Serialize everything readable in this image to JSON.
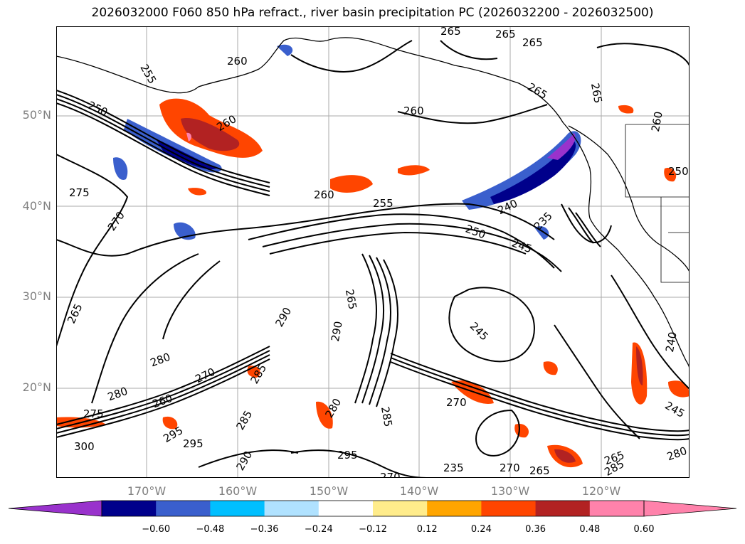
{
  "title": "2026032000 F060 850 hPa refract., river basin precipitation PC (2026032200 - 2026032500)",
  "lat_labels": [
    "50°N",
    "40°N",
    "30°N",
    "20°N"
  ],
  "lon_labels": [
    "170°W",
    "160°W",
    "150°W",
    "140°W",
    "130°W",
    "120°W"
  ],
  "contour_labels": [
    "265",
    "265",
    "265",
    "260",
    "255",
    "250",
    "260",
    "260",
    "265",
    "265",
    "260",
    "275",
    "270",
    "260",
    "255",
    "240",
    "235",
    "250",
    "245",
    "265",
    "290",
    "290",
    "265",
    "245",
    "280",
    "270",
    "280",
    "275",
    "260",
    "285",
    "285",
    "295",
    "295",
    "300",
    "290",
    "280",
    "295",
    "270",
    "285",
    "270",
    "265",
    "285",
    "280",
    "245",
    "240",
    "265",
    "235",
    "270",
    "250"
  ],
  "colorbar": {
    "ticks": [
      "−0.60",
      "−0.48",
      "−0.36",
      "−0.24",
      "−0.12",
      "0.12",
      "0.24",
      "0.36",
      "0.48",
      "0.60"
    ],
    "colors": [
      "#9932cc",
      "#00008b",
      "#3a5fcd",
      "#00bfff",
      "#b0e2ff",
      "#ffffff",
      "#ffec8b",
      "#ffa500",
      "#ff4500",
      "#b22222",
      "#ff82ab",
      "#ff82ab"
    ]
  }
}
